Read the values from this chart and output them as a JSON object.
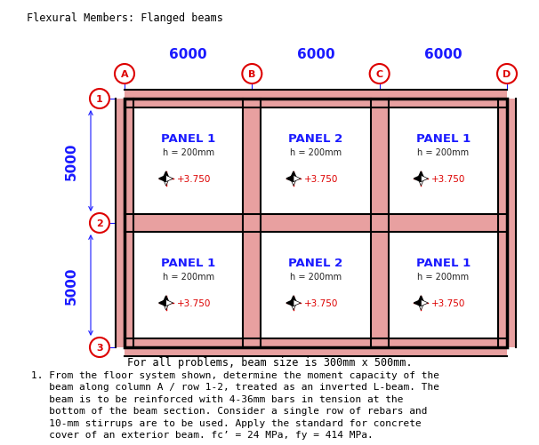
{
  "title": "Flexural Members: Flanged beams",
  "title_font": 8.5,
  "title_color": "#000000",
  "bg_color": "#ffffff",
  "beam_fill_color": "#e8a0a0",
  "col_labels": [
    "A",
    "B",
    "C",
    "D"
  ],
  "row_labels": [
    "1",
    "2",
    "3"
  ],
  "span_labels": [
    "6000",
    "6000",
    "6000"
  ],
  "height_labels": [
    "5000",
    "5000"
  ],
  "panels_row0": [
    "PANEL 1",
    "PANEL 2",
    "PANEL 1"
  ],
  "panels_row1": [
    "PANEL 1",
    "PANEL 2",
    "PANEL 1"
  ],
  "panel_h": "h = 200mm",
  "elev": "+3.750",
  "blue_color": "#1a1aff",
  "red_color": "#dd0000",
  "dark_color": "#000000",
  "note_text": "For all problems, beam size is 300mm x 500mm.",
  "prob_text_lines": [
    "1. From the floor system shown, determine the moment capacity of the",
    "   beam along column A / row 1-2, treated as an inverted L-beam. The",
    "   beam is to be reinforced with 4-36mm bars in tension at the",
    "   bottom of the beam section. Consider a single row of rebars and",
    "   10-mm stirrups are to be used. Apply the standard for concrete",
    "   cover of an exterior beam. fc’ = 24 MPa, fy = 414 MPa."
  ]
}
